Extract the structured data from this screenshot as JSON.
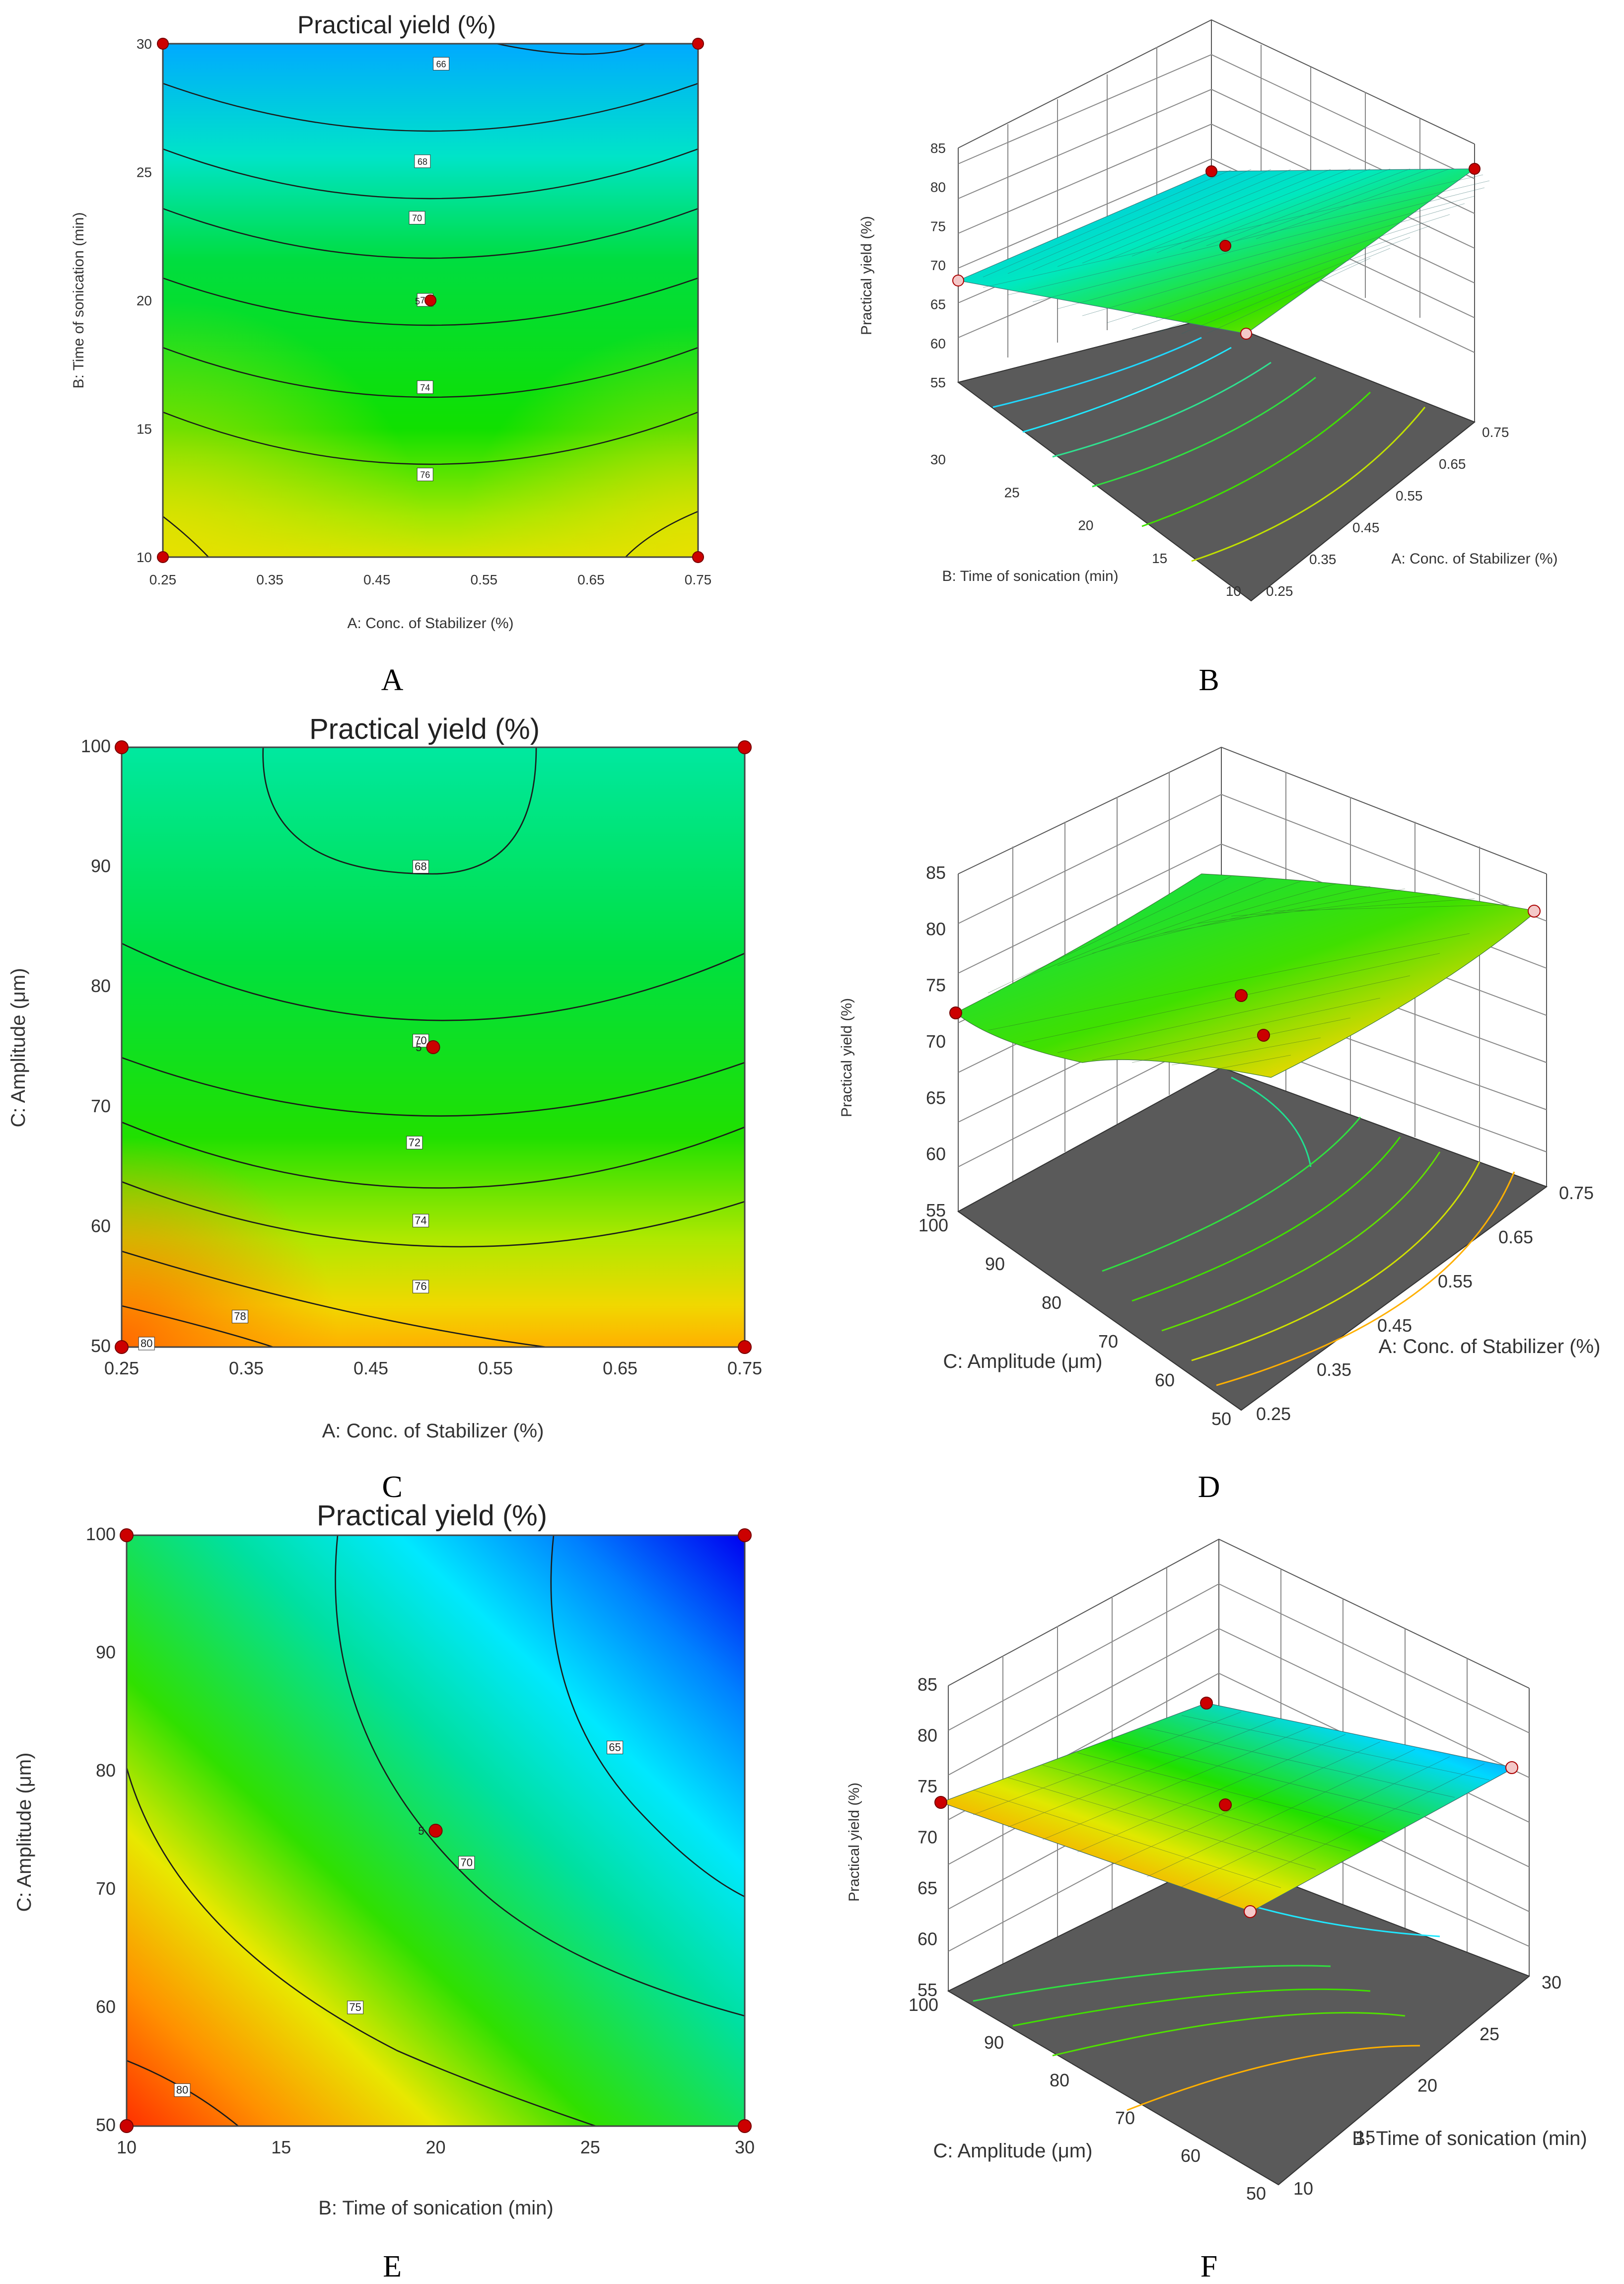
{
  "chart_data": [
    {
      "panel": "A",
      "type": "contour",
      "title": "Practical yield  (%)",
      "xlabel": "A: Conc. of Stabilizer  (%)",
      "ylabel": "B: Time of sonication (min)",
      "xlim": [
        0.25,
        0.75
      ],
      "ylim": [
        10,
        30
      ],
      "xticks": [
        "0.25",
        "0.35",
        "0.45",
        "0.55",
        "0.65",
        "0.75"
      ],
      "yticks": [
        "10",
        "15",
        "20",
        "25",
        "30"
      ],
      "contour_levels": [
        66,
        68,
        70,
        72,
        74,
        76
      ],
      "z_range": [
        64,
        77
      ],
      "design_points": [
        [
          0.25,
          10
        ],
        [
          0.75,
          10
        ],
        [
          0.25,
          30
        ],
        [
          0.75,
          30
        ],
        [
          0.5,
          20
        ]
      ],
      "center_replicates": "5"
    },
    {
      "panel": "B",
      "type": "surface3d",
      "zlabel": "Practical yield  (%)",
      "xlabel": "A: Conc. of Stabilizer  (%)",
      "ylabel": "B: Time of sonication (min)",
      "xticks": [
        "0.25",
        "0.35",
        "0.45",
        "0.55",
        "0.65",
        "0.75"
      ],
      "yticks": [
        "10",
        "15",
        "20",
        "25",
        "30"
      ],
      "zticks": [
        "55",
        "60",
        "65",
        "70",
        "75",
        "80",
        "85"
      ],
      "zlim": [
        55,
        85
      ]
    },
    {
      "panel": "C",
      "type": "contour",
      "title": "Practical yield  (%)",
      "xlabel": "A: Conc. of Stabilizer  (%)",
      "ylabel": "C: Amplitude  (μm)",
      "xlim": [
        0.25,
        0.75
      ],
      "ylim": [
        50,
        100
      ],
      "xticks": [
        "0.25",
        "0.35",
        "0.45",
        "0.55",
        "0.65",
        "0.75"
      ],
      "yticks": [
        "50",
        "60",
        "70",
        "80",
        "90",
        "100"
      ],
      "contour_levels": [
        68,
        70,
        72,
        74,
        76,
        78,
        80
      ],
      "z_range": [
        67,
        81
      ],
      "design_points": [
        [
          0.25,
          50
        ],
        [
          0.75,
          50
        ],
        [
          0.25,
          100
        ],
        [
          0.75,
          100
        ],
        [
          0.5,
          75
        ]
      ],
      "center_replicates": "5"
    },
    {
      "panel": "D",
      "type": "surface3d",
      "zlabel": "Practical yield  (%)",
      "xlabel": "A: Conc. of Stabilizer  (%)",
      "ylabel": "C: Amplitude  (μm)",
      "xticks": [
        "0.25",
        "0.35",
        "0.45",
        "0.55",
        "0.65",
        "0.75"
      ],
      "yticks": [
        "50",
        "60",
        "70",
        "80",
        "90",
        "100"
      ],
      "zticks": [
        "55",
        "60",
        "65",
        "70",
        "75",
        "80",
        "85"
      ],
      "zlim": [
        55,
        85
      ]
    },
    {
      "panel": "E",
      "type": "contour",
      "title": "Practical yield  (%)",
      "xlabel": "B: Time of sonication (min)",
      "ylabel": "C: Amplitude  (μm)",
      "xlim": [
        10,
        30
      ],
      "ylim": [
        50,
        100
      ],
      "xticks": [
        "10",
        "15",
        "20",
        "25",
        "30"
      ],
      "yticks": [
        "50",
        "60",
        "70",
        "80",
        "90",
        "100"
      ],
      "contour_levels": [
        65,
        70,
        75,
        80
      ],
      "z_range": [
        57,
        83
      ],
      "design_points": [
        [
          10,
          50
        ],
        [
          30,
          50
        ],
        [
          10,
          100
        ],
        [
          30,
          100
        ],
        [
          20,
          75
        ]
      ],
      "center_replicates": "5"
    },
    {
      "panel": "F",
      "type": "surface3d",
      "zlabel": "Practical yield  (%)",
      "xlabel": "B: Time of sonication (min)",
      "ylabel": "C: Amplitude  (μm)",
      "xticks": [
        "10",
        "15",
        "20",
        "25",
        "30"
      ],
      "yticks": [
        "50",
        "60",
        "70",
        "80",
        "90",
        "100"
      ],
      "zticks": [
        "55",
        "60",
        "65",
        "70",
        "75",
        "80",
        "85"
      ],
      "zlim": [
        55,
        85
      ]
    }
  ],
  "colors": {
    "blue": "#0000ff",
    "cyan": "#00e8ff",
    "green": "#00dd00",
    "yellow": "#e8e800",
    "orange": "#ff8000",
    "red": "#e02000",
    "floor": "#5a5a5a",
    "point": "#cc0000",
    "point_low": "#f4c8c8"
  }
}
